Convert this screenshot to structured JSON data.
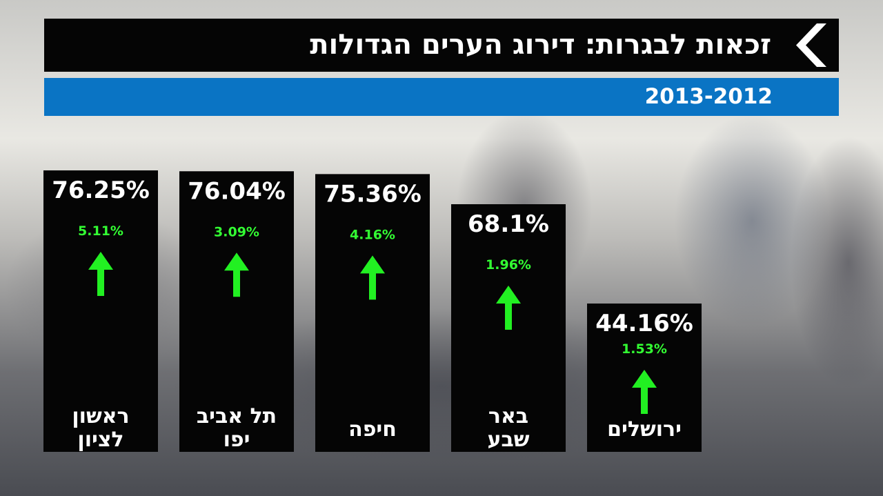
{
  "header": {
    "title": "זכאות לבגרות: דירוג הערים הגדולות",
    "subtitle": "2013-2012"
  },
  "colors": {
    "bar": "#050505",
    "value_text": "#ffffff",
    "change_text": "#33ff33",
    "arrow": "#22f022",
    "subtitle_bg": "#0a74c4"
  },
  "chart_data": {
    "type": "bar",
    "title": "זכאות לבגרות: דירוג הערים הגדולות",
    "subtitle": "2013-2012",
    "unit": "%",
    "categories": [
      [
        "ראשון",
        "לציון"
      ],
      [
        "תל אביב",
        "יפו"
      ],
      [
        "חיפה"
      ],
      [
        "באר",
        "שבע"
      ],
      [
        "ירושלים"
      ]
    ],
    "values": [
      76.25,
      76.04,
      75.36,
      68.1,
      44.16
    ],
    "value_labels": [
      "76.25%",
      "76.04%",
      "75.36%",
      "68.1%",
      "44.16%"
    ],
    "changes": [
      5.11,
      3.09,
      4.16,
      1.96,
      1.53
    ],
    "change_labels": [
      "5.11%",
      "3.09%",
      "4.16%",
      "1.96%",
      "1.53%"
    ],
    "change_direction": [
      "up",
      "up",
      "up",
      "up",
      "up"
    ]
  }
}
